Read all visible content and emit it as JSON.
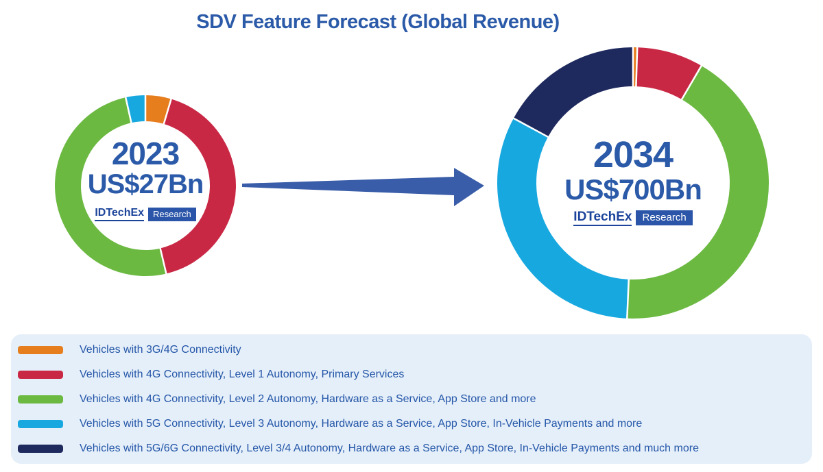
{
  "title": "SDV Feature Forecast (Global Revenue)",
  "brand": {
    "name": "IDTechEx",
    "badge": "Research"
  },
  "chart_data": {
    "type": "pie",
    "subtype": "donut-comparison",
    "title": "SDV Feature Forecast (Global Revenue)",
    "legend_position": "bottom",
    "categories": [
      "Vehicles with 3G/4G Connectivity",
      "Vehicles with 4G Connectivity, Level 1 Autonomy, Primary Services",
      "Vehicles with 4G Connectivity, Level 2 Autonomy, Hardware as a Service, App Store and more",
      "Vehicles with 5G Connectivity, Level 3 Autonomy, Hardware as a Service, App Store, In-Vehicle Payments and more",
      "Vehicles with 5G/6G Connectivity, Level 3/4 Autonomy, Hardware as a Service, App Store, In-Vehicle Payments and much more"
    ],
    "colors": [
      "#E67E1E",
      "#C92845",
      "#6CB942",
      "#18A8E0",
      "#1E2A5E"
    ],
    "series": [
      {
        "name": "2023",
        "total": "US$27Bn",
        "values_percent": [
          4.6,
          41.7,
          50.2,
          3.5,
          0.0
        ]
      },
      {
        "name": "2034",
        "total": "US$700Bn",
        "values_percent": [
          0.5,
          7.9,
          42.3,
          32.2,
          17.1
        ]
      }
    ]
  }
}
